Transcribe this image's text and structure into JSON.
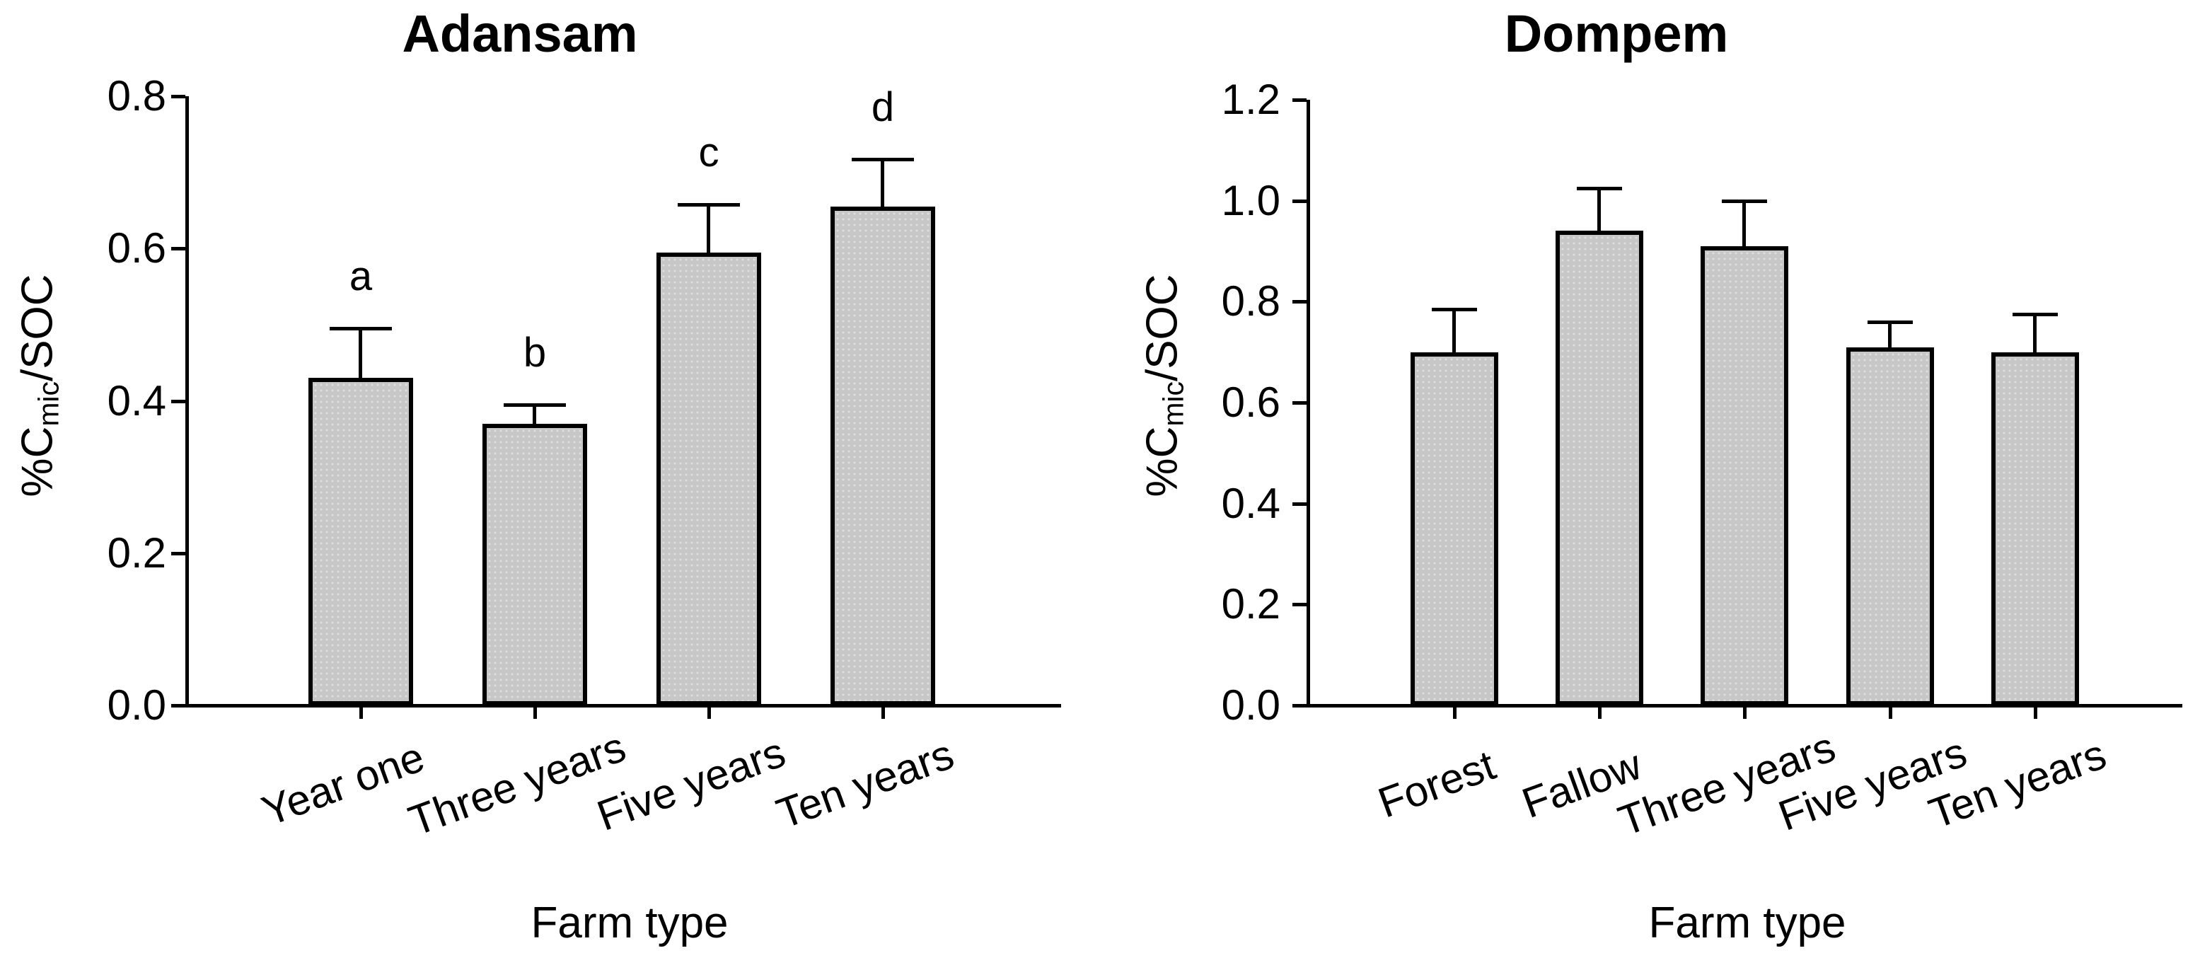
{
  "chart_data": [
    {
      "type": "bar",
      "title": "Adansam",
      "xlabel": "Farm type",
      "ylabel_prefix": "%C",
      "ylabel_sub": "mic",
      "ylabel_suffix": "/SOC",
      "categories": [
        "Year one",
        "Three years",
        "Five years",
        "Ten years"
      ],
      "values": [
        0.43,
        0.37,
        0.595,
        0.655
      ],
      "errors": [
        0.065,
        0.025,
        0.063,
        0.062
      ],
      "bar_labels": [
        "a",
        "b",
        "c",
        "d"
      ],
      "ylim": [
        0,
        0.8
      ],
      "ytick_step": 0.2,
      "ytick_labels": [
        "0.0",
        "0.2",
        "0.4",
        "0.6",
        "0.8"
      ],
      "bar_color": "#c7c7c7",
      "grid": false,
      "legend": null
    },
    {
      "type": "bar",
      "title": "Dompem",
      "xlabel": "Farm type",
      "ylabel_prefix": "%C",
      "ylabel_sub": "mic",
      "ylabel_suffix": "/SOC",
      "categories": [
        "Forest",
        "Fallow",
        "Three years",
        "Five years",
        "Ten years"
      ],
      "values": [
        0.7,
        0.94,
        0.91,
        0.71,
        0.7
      ],
      "errors": [
        0.085,
        0.085,
        0.09,
        0.05,
        0.075
      ],
      "bar_labels": [],
      "ylim": [
        0,
        1.2
      ],
      "ytick_step": 0.2,
      "ytick_labels": [
        "0.0",
        "0.2",
        "0.4",
        "0.6",
        "0.8",
        "1.0",
        "1.2"
      ],
      "bar_color": "#c7c7c7",
      "grid": false,
      "legend": null
    }
  ]
}
